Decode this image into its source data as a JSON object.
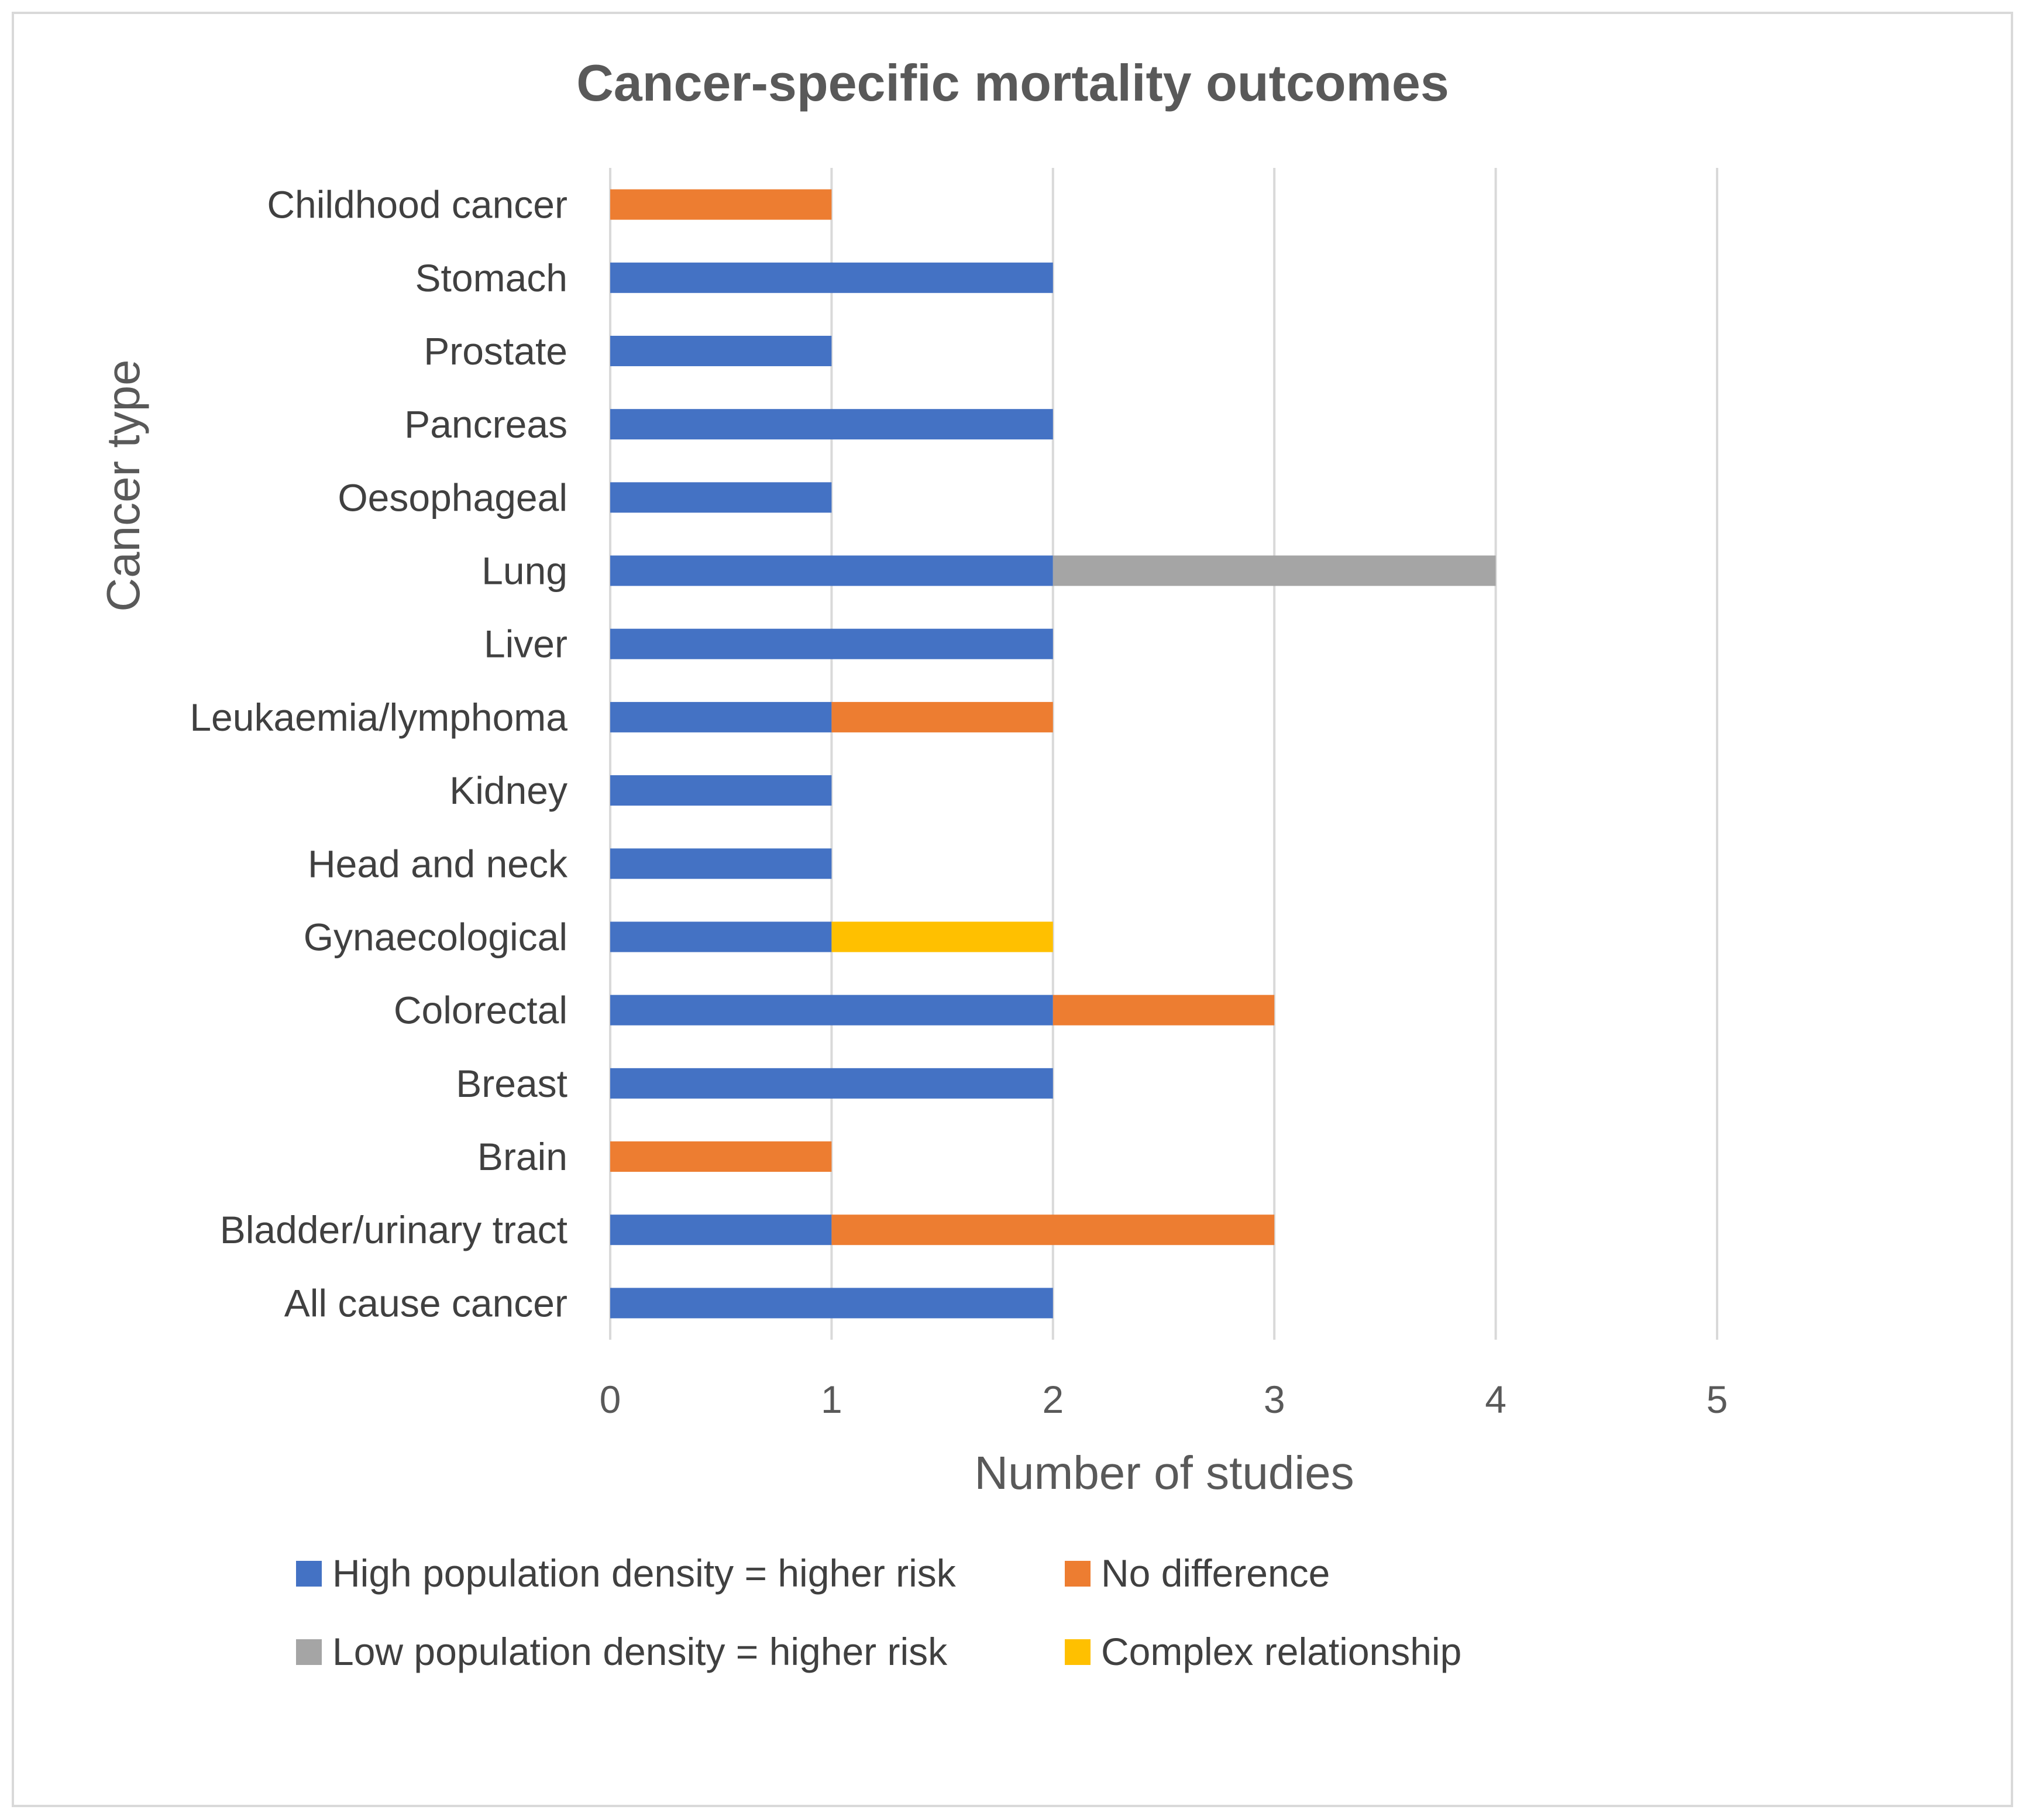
{
  "chart_data": {
    "type": "bar",
    "orientation": "horizontal",
    "stacked": true,
    "title": "Cancer-specific mortality outcomes",
    "xlabel": "Number of studies",
    "ylabel": "Cancer type",
    "xlim": [
      0,
      5
    ],
    "xticks": [
      "0",
      "1",
      "2",
      "3",
      "4",
      "5"
    ],
    "grid": true,
    "legend_position": "bottom",
    "categories": [
      "All cause cancer",
      "Bladder/urinary tract",
      "Brain",
      "Breast",
      "Colorectal",
      "Gynaecological",
      "Head and neck",
      "Kidney",
      "Leukaemia/lymphoma",
      "Liver",
      "Lung",
      "Oesophageal",
      "Pancreas",
      "Prostate",
      "Stomach",
      "Childhood cancer"
    ],
    "series": [
      {
        "name": "High population density = higher risk",
        "color": "#4472C4",
        "values": [
          2,
          1,
          0,
          2,
          2,
          1,
          1,
          1,
          1,
          2,
          2,
          1,
          2,
          1,
          2,
          0
        ]
      },
      {
        "name": "No difference",
        "color": "#ED7D31",
        "values": [
          0,
          2,
          1,
          0,
          1,
          0,
          0,
          0,
          1,
          0,
          0,
          0,
          0,
          0,
          0,
          1
        ]
      },
      {
        "name": "Low population density = higher risk",
        "color": "#A5A5A5",
        "values": [
          0,
          0,
          0,
          0,
          0,
          0,
          0,
          0,
          0,
          0,
          2,
          0,
          0,
          0,
          0,
          0
        ]
      },
      {
        "name": "Complex relationship",
        "color": "#FFC000",
        "values": [
          0,
          0,
          0,
          0,
          0,
          1,
          0,
          0,
          0,
          0,
          0,
          0,
          0,
          0,
          0,
          0
        ]
      }
    ],
    "legend_order": [
      0,
      1,
      2,
      3
    ]
  }
}
